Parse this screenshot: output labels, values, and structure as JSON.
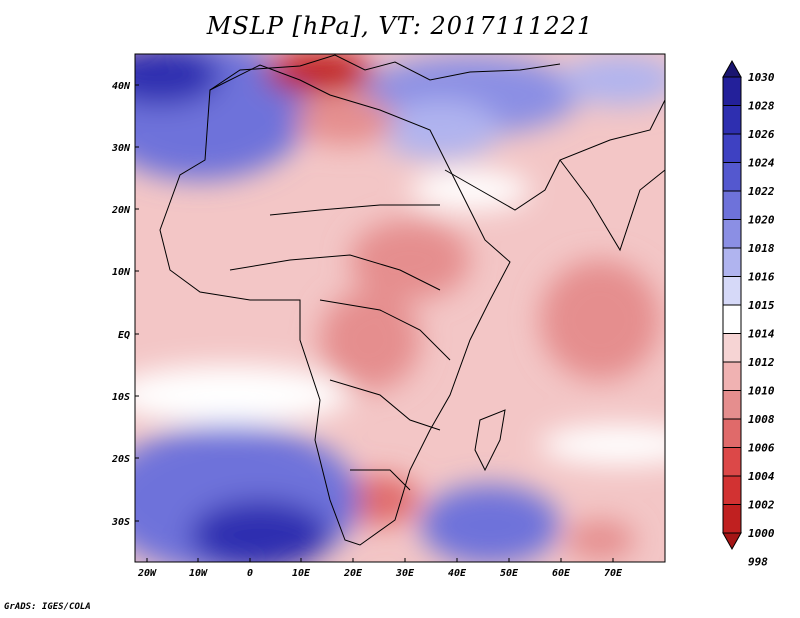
{
  "title": "MSLP [hPa], VT: 2017111221",
  "footer": "GrADS: IGES/COLA",
  "axes": {
    "lat_labels": [
      "40N",
      "30N",
      "20N",
      "10N",
      "EQ",
      "10S",
      "20S",
      "30S"
    ],
    "lon_labels": [
      "20W",
      "10W",
      "0",
      "10E",
      "20E",
      "30E",
      "40E",
      "50E",
      "60E",
      "70E"
    ]
  },
  "colorbar": {
    "levels": [
      {
        "label": "1030",
        "color": "#1a1570"
      },
      {
        "label": "1028",
        "color": "#23209a"
      },
      {
        "label": "1026",
        "color": "#2e2fb0"
      },
      {
        "label": "1024",
        "color": "#3e41c2"
      },
      {
        "label": "1022",
        "color": "#5458cf"
      },
      {
        "label": "1020",
        "color": "#6e72da"
      },
      {
        "label": "1018",
        "color": "#8b8fe4"
      },
      {
        "label": "1016",
        "color": "#b0b4ef"
      },
      {
        "label": "1015",
        "color": "#d6d9f8"
      },
      {
        "label": "1014",
        "color": "#ffffff"
      },
      {
        "label": "1012",
        "color": "#f6d4d4"
      },
      {
        "label": "1010",
        "color": "#f0b2b2"
      },
      {
        "label": "1008",
        "color": "#e58e8e"
      },
      {
        "label": "1006",
        "color": "#e06a6a"
      },
      {
        "label": "1004",
        "color": "#dc4848"
      },
      {
        "label": "1002",
        "color": "#d23232"
      },
      {
        "label": "1000",
        "color": "#c02020"
      },
      {
        "label": "998",
        "color": "#a51515"
      }
    ]
  }
}
